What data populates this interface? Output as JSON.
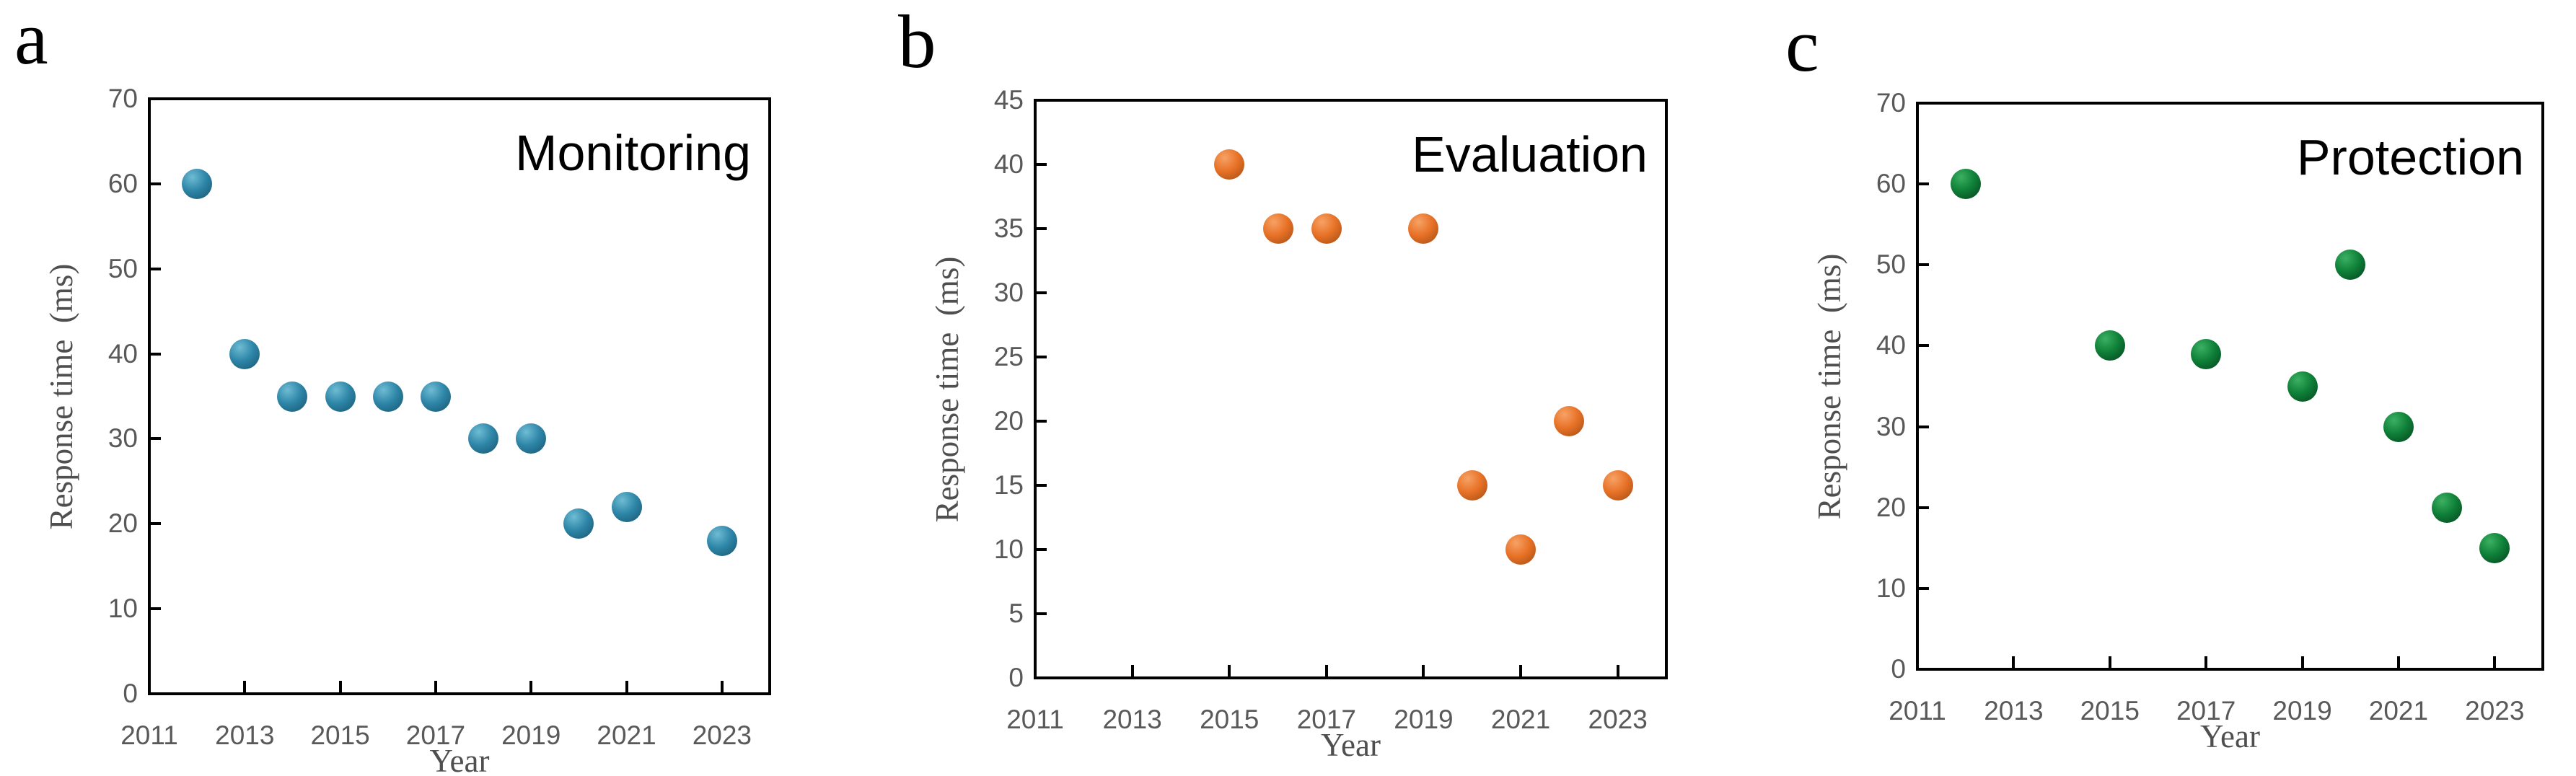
{
  "figure": {
    "background": "#ffffff",
    "axis_color": "#000000",
    "tick_label_color": "#595959",
    "axis_label_color": "#4f4f4f",
    "panel_letter_color": "#000000",
    "corner_label_color": "#000000"
  },
  "chart_data": [
    {
      "type": "scatter",
      "panel_letter": "a",
      "title": "Monitoring",
      "xlabel": "Year",
      "ylabel": "Response time  (ms)",
      "xlim": [
        2011,
        2024
      ],
      "ylim": [
        0,
        70
      ],
      "x_ticks": [
        2011,
        2013,
        2015,
        2017,
        2019,
        2021,
        2023
      ],
      "y_ticks": [
        0,
        10,
        20,
        30,
        40,
        50,
        60,
        70
      ],
      "grid": false,
      "legend": "none",
      "marker": {
        "highlight": "#6fbcd4",
        "mid": "#2e86a8",
        "dark": "#17536d"
      },
      "points": [
        {
          "x": 2012,
          "y": 60
        },
        {
          "x": 2013,
          "y": 40
        },
        {
          "x": 2014,
          "y": 35
        },
        {
          "x": 2015,
          "y": 35
        },
        {
          "x": 2016,
          "y": 35
        },
        {
          "x": 2017,
          "y": 35
        },
        {
          "x": 2018,
          "y": 30
        },
        {
          "x": 2019,
          "y": 30
        },
        {
          "x": 2020,
          "y": 20
        },
        {
          "x": 2021,
          "y": 22
        },
        {
          "x": 2023,
          "y": 18
        }
      ]
    },
    {
      "type": "scatter",
      "panel_letter": "b",
      "title": "Evaluation",
      "xlabel": "Year",
      "ylabel": "Response time  (ms)",
      "xlim": [
        2011,
        2024
      ],
      "ylim": [
        0,
        45
      ],
      "x_ticks": [
        2011,
        2013,
        2015,
        2017,
        2019,
        2021,
        2023
      ],
      "y_ticks": [
        0,
        5,
        10,
        15,
        20,
        25,
        30,
        35,
        40,
        45
      ],
      "grid": false,
      "legend": "none",
      "marker": {
        "highlight": "#f6a266",
        "mid": "#e87227",
        "dark": "#a04a12"
      },
      "points": [
        {
          "x": 2015,
          "y": 40
        },
        {
          "x": 2016,
          "y": 35
        },
        {
          "x": 2017,
          "y": 35
        },
        {
          "x": 2019,
          "y": 35
        },
        {
          "x": 2020,
          "y": 15
        },
        {
          "x": 2021,
          "y": 10
        },
        {
          "x": 2022,
          "y": 20
        },
        {
          "x": 2023,
          "y": 15
        }
      ]
    },
    {
      "type": "scatter",
      "panel_letter": "c",
      "title": "Protection",
      "xlabel": "Year",
      "ylabel": "Response time  (ms)",
      "xlim": [
        2011,
        2024
      ],
      "ylim": [
        0,
        70
      ],
      "x_ticks": [
        2011,
        2013,
        2015,
        2017,
        2019,
        2021,
        2023
      ],
      "y_ticks": [
        0,
        10,
        20,
        30,
        40,
        50,
        60,
        70
      ],
      "grid": false,
      "legend": "none",
      "marker": {
        "highlight": "#3bb062",
        "mid": "#0f8038",
        "dark": "#04401c"
      },
      "points": [
        {
          "x": 2012,
          "y": 60
        },
        {
          "x": 2015,
          "y": 40
        },
        {
          "x": 2017,
          "y": 39
        },
        {
          "x": 2019,
          "y": 35
        },
        {
          "x": 2020,
          "y": 50
        },
        {
          "x": 2021,
          "y": 30
        },
        {
          "x": 2022,
          "y": 20
        },
        {
          "x": 2023,
          "y": 15
        }
      ]
    }
  ]
}
